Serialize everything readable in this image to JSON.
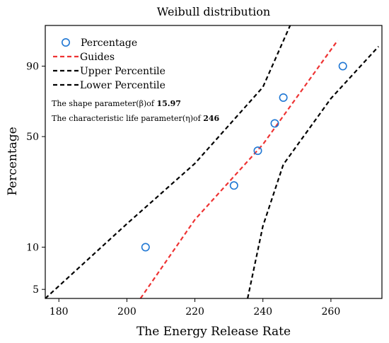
{
  "chart_data": {
    "type": "scatter",
    "title": "Weibull distribution",
    "xlabel": "The Energy Release Rate",
    "ylabel": "Percentage",
    "xlim": [
      176,
      275
    ],
    "y_scale": "weibull",
    "ylim": [
      4.3,
      99
    ],
    "x_ticks": [
      "180",
      "200",
      "220",
      "240",
      "260"
    ],
    "x_tick_values": [
      180,
      200,
      220,
      240,
      260
    ],
    "y_ticks": [
      "5",
      "10",
      "50",
      "90"
    ],
    "y_tick_values": [
      5,
      10,
      50,
      90
    ],
    "grid": false,
    "legend_position": "top-left",
    "series": [
      {
        "name": "Percentage",
        "kind": "markers",
        "color": "#1f77d4",
        "points": [
          {
            "x": 205.5,
            "y": 10
          },
          {
            "x": 231.5,
            "y": 26
          },
          {
            "x": 238.5,
            "y": 42
          },
          {
            "x": 243.5,
            "y": 58
          },
          {
            "x": 246.0,
            "y": 74
          },
          {
            "x": 263.5,
            "y": 90
          }
        ]
      },
      {
        "name": "Guides",
        "kind": "line",
        "style": "dashed",
        "color": "#ee3333",
        "points": [
          {
            "x": 204.0,
            "y": 4.3
          },
          {
            "x": 220.0,
            "y": 15.5
          },
          {
            "x": 240.0,
            "y": 45.5
          },
          {
            "x": 262.0,
            "y": 97.2
          }
        ]
      },
      {
        "name": "Upper Percentile",
        "kind": "line",
        "style": "dashed",
        "color": "#000000",
        "points": [
          {
            "x": 176.0,
            "y": 4.3
          },
          {
            "x": 200.0,
            "y": 14.5
          },
          {
            "x": 220.0,
            "y": 35.5
          },
          {
            "x": 240.0,
            "y": 80.0
          },
          {
            "x": 248.0,
            "y": 99.0
          }
        ]
      },
      {
        "name": "Lower Percentile",
        "kind": "line",
        "style": "dashed",
        "color": "#000000",
        "points": [
          {
            "x": 235.5,
            "y": 4.3
          },
          {
            "x": 240.0,
            "y": 14.0
          },
          {
            "x": 246.0,
            "y": 35.0
          },
          {
            "x": 260.0,
            "y": 73.5
          },
          {
            "x": 274.0,
            "y": 96.0
          }
        ]
      }
    ],
    "annotations": [
      {
        "text": "The shape parameter(β)of ",
        "value": "15.97"
      },
      {
        "text": "The characteristic life parameter(η)of ",
        "value": "246"
      }
    ]
  }
}
